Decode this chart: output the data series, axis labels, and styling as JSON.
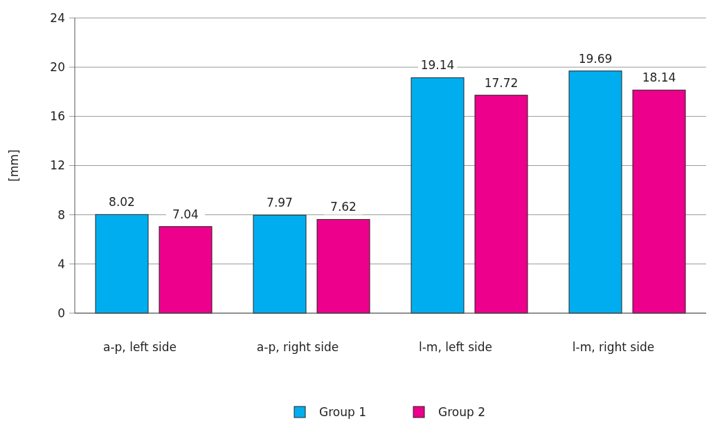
{
  "chart_data": {
    "type": "bar",
    "ylabel": "[mm]",
    "categories": [
      "a-p, left side",
      "a-p, right side",
      "l-m, left side",
      "l-m, right side"
    ],
    "series": [
      {
        "name": "Group 1",
        "color": "#00aeef",
        "values": [
          8.02,
          7.97,
          19.14,
          19.69
        ]
      },
      {
        "name": "Group 2",
        "color": "#ec008c",
        "values": [
          7.04,
          7.62,
          17.72,
          18.14
        ]
      }
    ],
    "ylim": [
      0,
      24
    ],
    "yticks": [
      0,
      4,
      8,
      12,
      16,
      20,
      24
    ],
    "grid": "y",
    "legend": "bottom",
    "data_labels": true
  }
}
